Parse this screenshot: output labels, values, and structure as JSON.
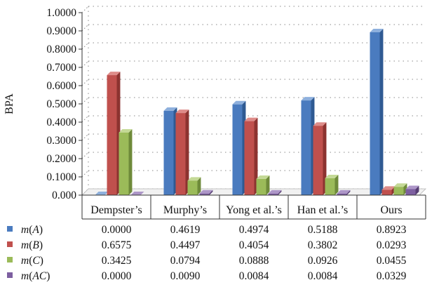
{
  "chart_data": {
    "type": "bar",
    "ylabel": "BPA",
    "xlabel": "",
    "ylim": [
      0,
      1
    ],
    "yticks": [
      "0.000",
      "0.1000",
      "0.2000",
      "0.3000",
      "0.4000",
      "0.5000",
      "0.6000",
      "0.7000",
      "0.8000",
      "0.9000",
      "1.0000"
    ],
    "categories": [
      "Dempster’s",
      "Murphy’s",
      "Yong et al.’s",
      "Han et al.’s",
      "Ours"
    ],
    "grid": true,
    "style": "3d-bar-with-data-table",
    "series": [
      {
        "name": "m(A)",
        "fn": "m",
        "arg": "A",
        "color": "#4a7bbf",
        "side": "#2f5a92",
        "top": "#8eb0dd",
        "values": [
          0.0,
          0.4619,
          0.4974,
          0.5188,
          0.8923
        ],
        "labels": [
          "0.0000",
          "0.4619",
          "0.4974",
          "0.5188",
          "0.8923"
        ]
      },
      {
        "name": "m(B)",
        "fn": "m",
        "arg": "B",
        "color": "#c0504d",
        "side": "#8c3330",
        "top": "#de8c89",
        "values": [
          0.6575,
          0.4497,
          0.4054,
          0.3802,
          0.0293
        ],
        "labels": [
          "0.6575",
          "0.4497",
          "0.4054",
          "0.3802",
          "0.0293"
        ]
      },
      {
        "name": "m(C)",
        "fn": "m",
        "arg": "C",
        "color": "#9bbb59",
        "side": "#6e8a3a",
        "top": "#c4d996",
        "values": [
          0.3425,
          0.0794,
          0.0888,
          0.0926,
          0.0455
        ],
        "labels": [
          "0.3425",
          "0.0794",
          "0.0888",
          "0.0926",
          "0.0455"
        ]
      },
      {
        "name": "m(AC)",
        "fn": "m",
        "arg": "AC",
        "color": "#7d5fa0",
        "side": "#563d73",
        "top": "#ad96c8",
        "values": [
          0.0,
          0.009,
          0.0084,
          0.0084,
          0.0329
        ],
        "labels": [
          "0.0000",
          "0.0090",
          "0.0084",
          "0.0084",
          "0.0329"
        ]
      }
    ]
  }
}
